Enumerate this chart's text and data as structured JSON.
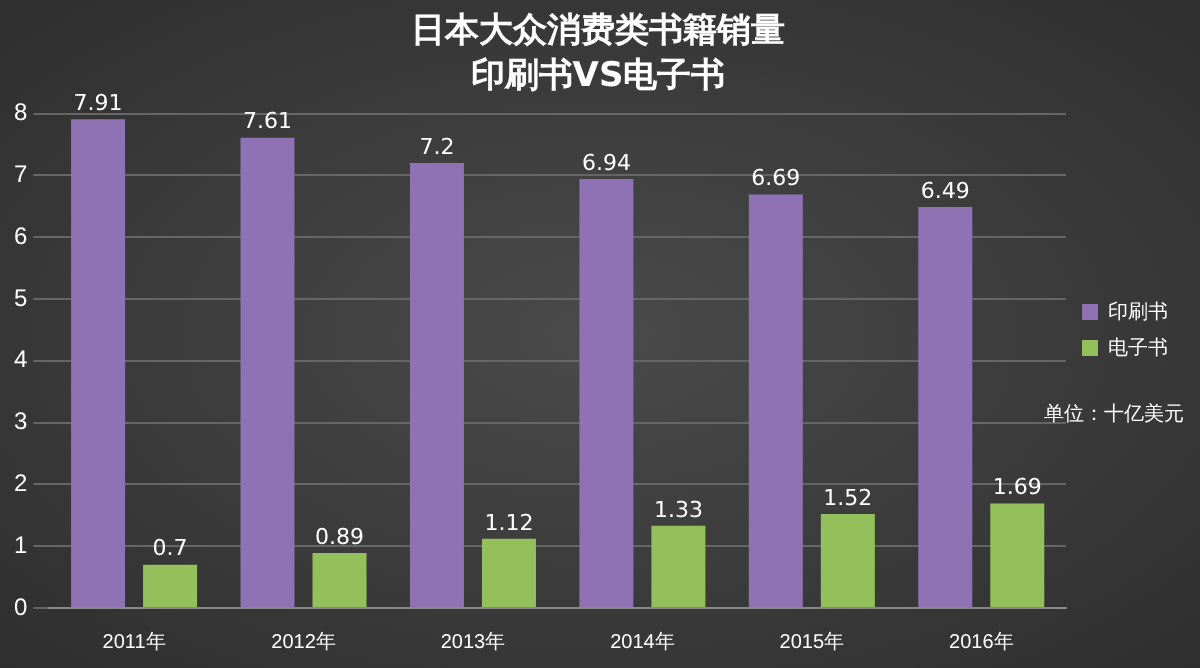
{
  "chart_data": {
    "type": "bar",
    "title": "日本大众消费类书籍销量",
    "subtitle": "印刷书VS电子书",
    "categories": [
      "2011年",
      "2012年",
      "2013年",
      "2014年",
      "2015年",
      "2016年"
    ],
    "series": [
      {
        "name": "印刷书",
        "color": "#8e72b4",
        "values": [
          7.91,
          7.61,
          7.2,
          6.94,
          6.69,
          6.49
        ]
      },
      {
        "name": "电子书",
        "color": "#94c05c",
        "values": [
          0.7,
          0.89,
          1.12,
          1.33,
          1.52,
          1.69
        ]
      }
    ],
    "ylim": [
      0,
      8
    ],
    "yticks": [
      0,
      1,
      2,
      3,
      4,
      5,
      6,
      7,
      8
    ],
    "grid": "y",
    "legend": "right",
    "data_labels": true,
    "annotations": [
      "单位：十亿美元"
    ]
  }
}
